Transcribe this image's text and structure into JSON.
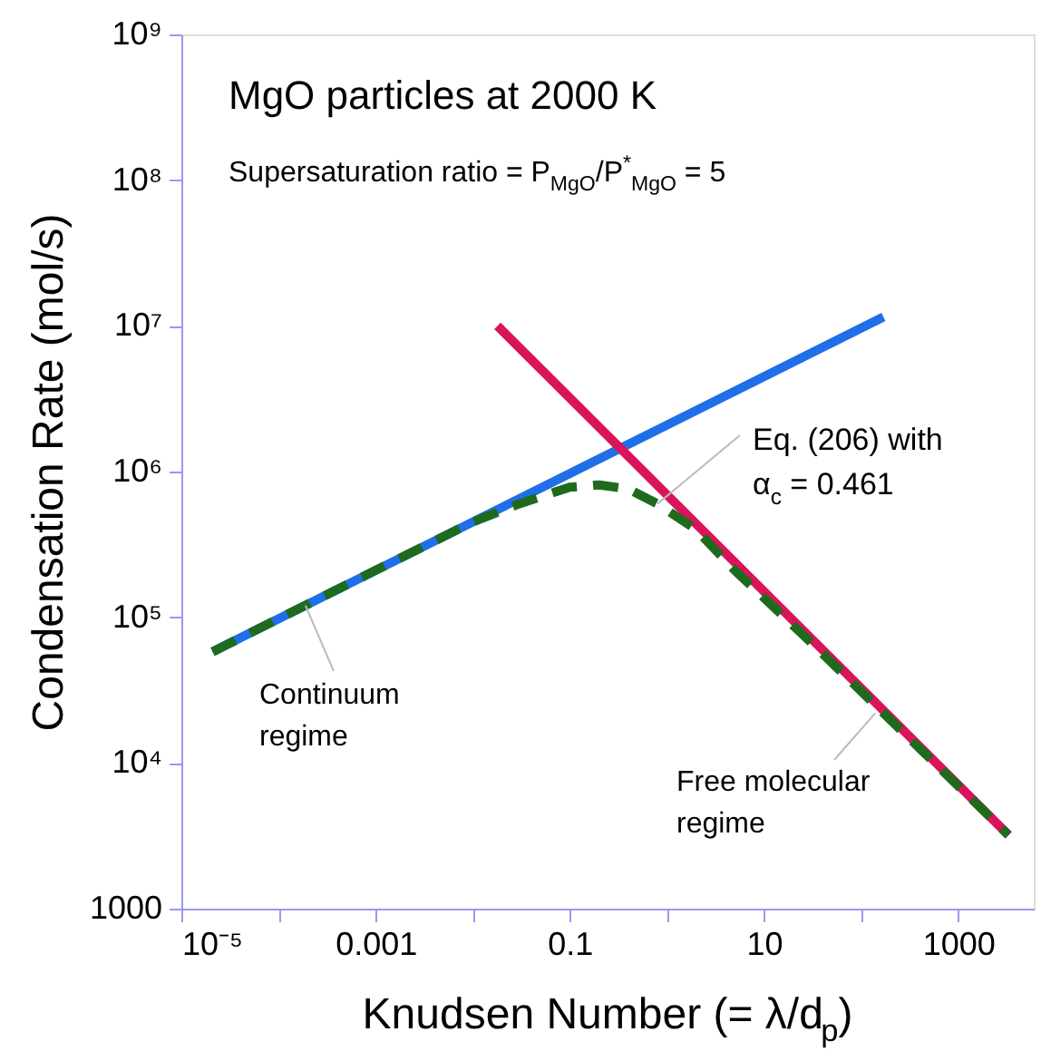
{
  "chart_data": {
    "type": "line",
    "xlabel": "Knudsen Number (= λ/d$_{p}$)",
    "ylabel": "Condensation Rate (mol/s)",
    "log": "xy",
    "grid": false,
    "marker": "none",
    "xlim": [
      1e-05,
      6000
    ],
    "xticks": [
      {
        "value": 1e-05,
        "label": "10⁻⁵"
      },
      {
        "value": 0.0001,
        "label": null
      },
      0.001,
      {
        "value": 0.01,
        "label": null
      },
      0.1,
      {
        "value": 1,
        "label": null
      },
      10,
      {
        "value": 100,
        "label": null
      },
      1000
    ],
    "ylim": [
      1000,
      1000000000
    ],
    "yticks": [
      1000,
      {
        "value": 10000,
        "label": "10⁴"
      },
      {
        "value": 100000,
        "label": "10⁵"
      },
      {
        "value": 1000000,
        "label": "10⁶"
      },
      {
        "value": 10000000,
        "label": "10⁷"
      },
      {
        "value": 100000000,
        "label": "10⁸"
      },
      {
        "value": 1000000000,
        "label": "10⁹"
      }
    ],
    "series": [
      {
        "color": "#1f6fe8",
        "line_style": "solid",
        "x": [
          2.1e-05,
          170
        ],
        "values": [
          58000,
          11500000
        ]
      },
      {
        "color": "#d9145a",
        "line_style": "solid",
        "x": [
          0.018,
          3300
        ],
        "values": [
          10000000,
          3200
        ]
      },
      {
        "color": "#1e6b1e",
        "line_style": "dashed",
        "x": [
          2.1e-05,
          0.001,
          0.01,
          0.03,
          0.1,
          0.2,
          0.4,
          0.8,
          2,
          5,
          30,
          3300
        ],
        "values": [
          58000,
          210000,
          450000,
          600000,
          780000,
          810000,
          760000,
          600000,
          400000,
          210000,
          68000,
          3200
        ]
      }
    ],
    "annotations": [
      "MgO particles at 2000 K",
      "Supersaturation ratio = P$_{MgO}$/P$^{*}$$_{MgO}$ = 5",
      {
        "text": "Eq. (206) with\nα$_{c}$ = 0.461",
        "x": 0.8,
        "y": 600000
      },
      {
        "text": "Continuum\nregime",
        "x": 0.00019,
        "y": 120000
      },
      {
        "text": "Free molecular\nregime",
        "x": 140,
        "y": 22000
      }
    ]
  }
}
